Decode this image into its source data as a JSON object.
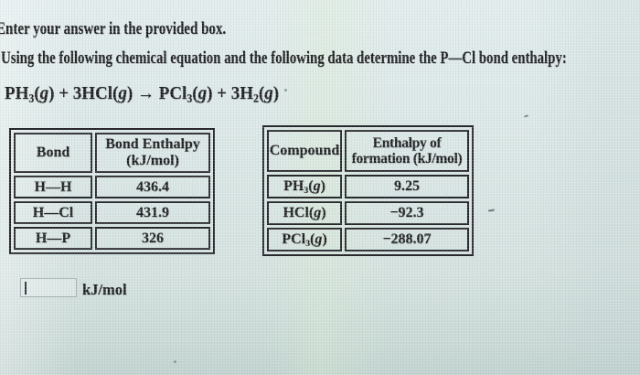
{
  "page": {
    "instruction": "Enter your answer in the provided box.",
    "question": "Using the following chemical equation and the following data determine the P—Cl bond enthalpy:",
    "equation": "PH_3_(~g~) + 3HCl(~g~) → PCl_3_(~g~) + 3H_2_(~g~)"
  },
  "bond_table": {
    "header_col1": "Bond",
    "header_col2_line1": "Bond Enthalpy",
    "header_col2_line2": "(kJ/mol)",
    "rows": [
      {
        "bond": "H—H",
        "enthalpy": "436.4"
      },
      {
        "bond": "H—Cl",
        "enthalpy": "431.9"
      },
      {
        "bond": "H—P",
        "enthalpy": "326"
      }
    ]
  },
  "formation_table": {
    "header_col1": "Compound",
    "header_col2_line1": "Enthalpy of",
    "header_col2_line2": "formation (kJ/mol)",
    "rows": [
      {
        "compound": "PH_3_(~g~)",
        "value": "9.25"
      },
      {
        "compound": "HCl(~g~)",
        "value": "−92.3"
      },
      {
        "compound": "PCl_3_(~g~)",
        "value": "−288.07"
      }
    ]
  },
  "answer": {
    "input_value": "",
    "unit_label": "kJ/mol"
  }
}
